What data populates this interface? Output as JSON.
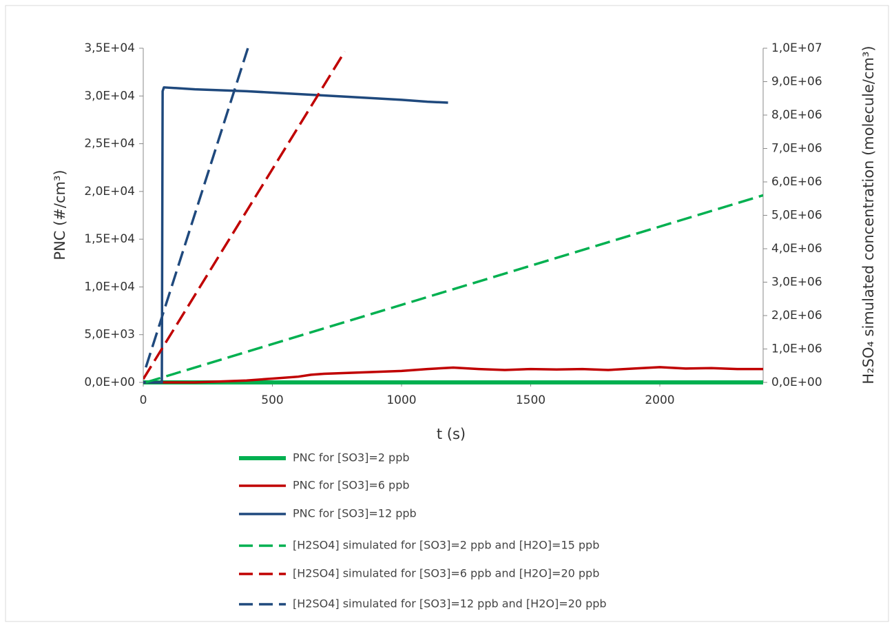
{
  "chart_data": {
    "type": "line",
    "x_label": "t (s)",
    "y_label": "PNC (#/cm³)",
    "y2_label": "H₂SO₄ simulated concentration (molecule/cm³)",
    "xlim": [
      0,
      2400
    ],
    "xticks": [
      0,
      500,
      1000,
      1500,
      2000
    ],
    "ylim": [
      0,
      35000
    ],
    "yticks": [
      {
        "value": 0,
        "label": "0,0E+00"
      },
      {
        "value": 5000,
        "label": "5,0E+03"
      },
      {
        "value": 10000,
        "label": "1,0E+04"
      },
      {
        "value": 15000,
        "label": "1,5E+04"
      },
      {
        "value": 20000,
        "label": "2,0E+04"
      },
      {
        "value": 25000,
        "label": "2,5E+04"
      },
      {
        "value": 30000,
        "label": "3,0E+04"
      },
      {
        "value": 35000,
        "label": "3,5E+04"
      }
    ],
    "y2lim": [
      0,
      10000000
    ],
    "y2ticks": [
      {
        "value": 0,
        "label": "0,0E+00"
      },
      {
        "value": 1000000,
        "label": "1,0E+06"
      },
      {
        "value": 2000000,
        "label": "2,0E+06"
      },
      {
        "value": 3000000,
        "label": "3,0E+06"
      },
      {
        "value": 4000000,
        "label": "4,0E+06"
      },
      {
        "value": 5000000,
        "label": "5,0E+06"
      },
      {
        "value": 6000000,
        "label": "6,0E+06"
      },
      {
        "value": 7000000,
        "label": "7,0E+06"
      },
      {
        "value": 8000000,
        "label": "8,0E+06"
      },
      {
        "value": 9000000,
        "label": "9,0E+06"
      },
      {
        "value": 10000000,
        "label": "1,0E+07"
      }
    ],
    "grid": false,
    "legend": "bottom",
    "series": [
      {
        "name": "PNC for [SO3]=2 ppb",
        "color": "#00b050",
        "style": "solid",
        "width": 6,
        "x": [
          0,
          600,
          1200,
          1800,
          2400
        ],
        "values": [
          0,
          0,
          0,
          0,
          0
        ]
      },
      {
        "name": "PNC for [SO3]=6 ppb",
        "color": "#c00000",
        "style": "solid",
        "width": 3.5,
        "x": [
          0,
          200,
          300,
          400,
          500,
          600,
          650,
          700,
          800,
          900,
          1000,
          1100,
          1200,
          1300,
          1400,
          1500,
          1600,
          1700,
          1800,
          1900,
          2000,
          2100,
          2200,
          2300,
          2400
        ],
        "values": [
          0,
          0,
          100,
          200,
          400,
          600,
          800,
          900,
          1000,
          1100,
          1200,
          1400,
          1550,
          1400,
          1300,
          1400,
          1350,
          1400,
          1300,
          1450,
          1600,
          1450,
          1500,
          1400,
          1400
        ]
      },
      {
        "name": "PNC for [SO3]=12 ppb",
        "color": "#1f497d",
        "style": "solid",
        "width": 3.5,
        "x": [
          0,
          72,
          75,
          80,
          200,
          400,
          600,
          800,
          1000,
          1100,
          1180
        ],
        "values": [
          0,
          0,
          30500,
          30900,
          30700,
          30500,
          30200,
          29900,
          29600,
          29400,
          29300
        ]
      },
      {
        "name": "[H2SO4] simulated for [SO3]=2 ppb and [H2O]=15 ppb",
        "color": "#00b050",
        "style": "dashed",
        "width": 3.5,
        "axis": "y2",
        "x": [
          10,
          2400
        ],
        "values": [
          0,
          5600000
        ]
      },
      {
        "name": "[H2SO4] simulated for [SO3]=6 ppb and [H2O]=20 ppb",
        "color": "#c00000",
        "style": "dashed",
        "width": 3.5,
        "axis": "y2",
        "x": [
          0,
          780
        ],
        "values": [
          100000,
          9900000
        ]
      },
      {
        "name": "[H2SO4] simulated for [SO3]=12 ppb and [H2O]=20 ppb",
        "color": "#1f497d",
        "style": "dashed",
        "width": 3.5,
        "axis": "y2",
        "x": [
          10,
          405
        ],
        "values": [
          450000,
          10000000
        ]
      }
    ]
  }
}
